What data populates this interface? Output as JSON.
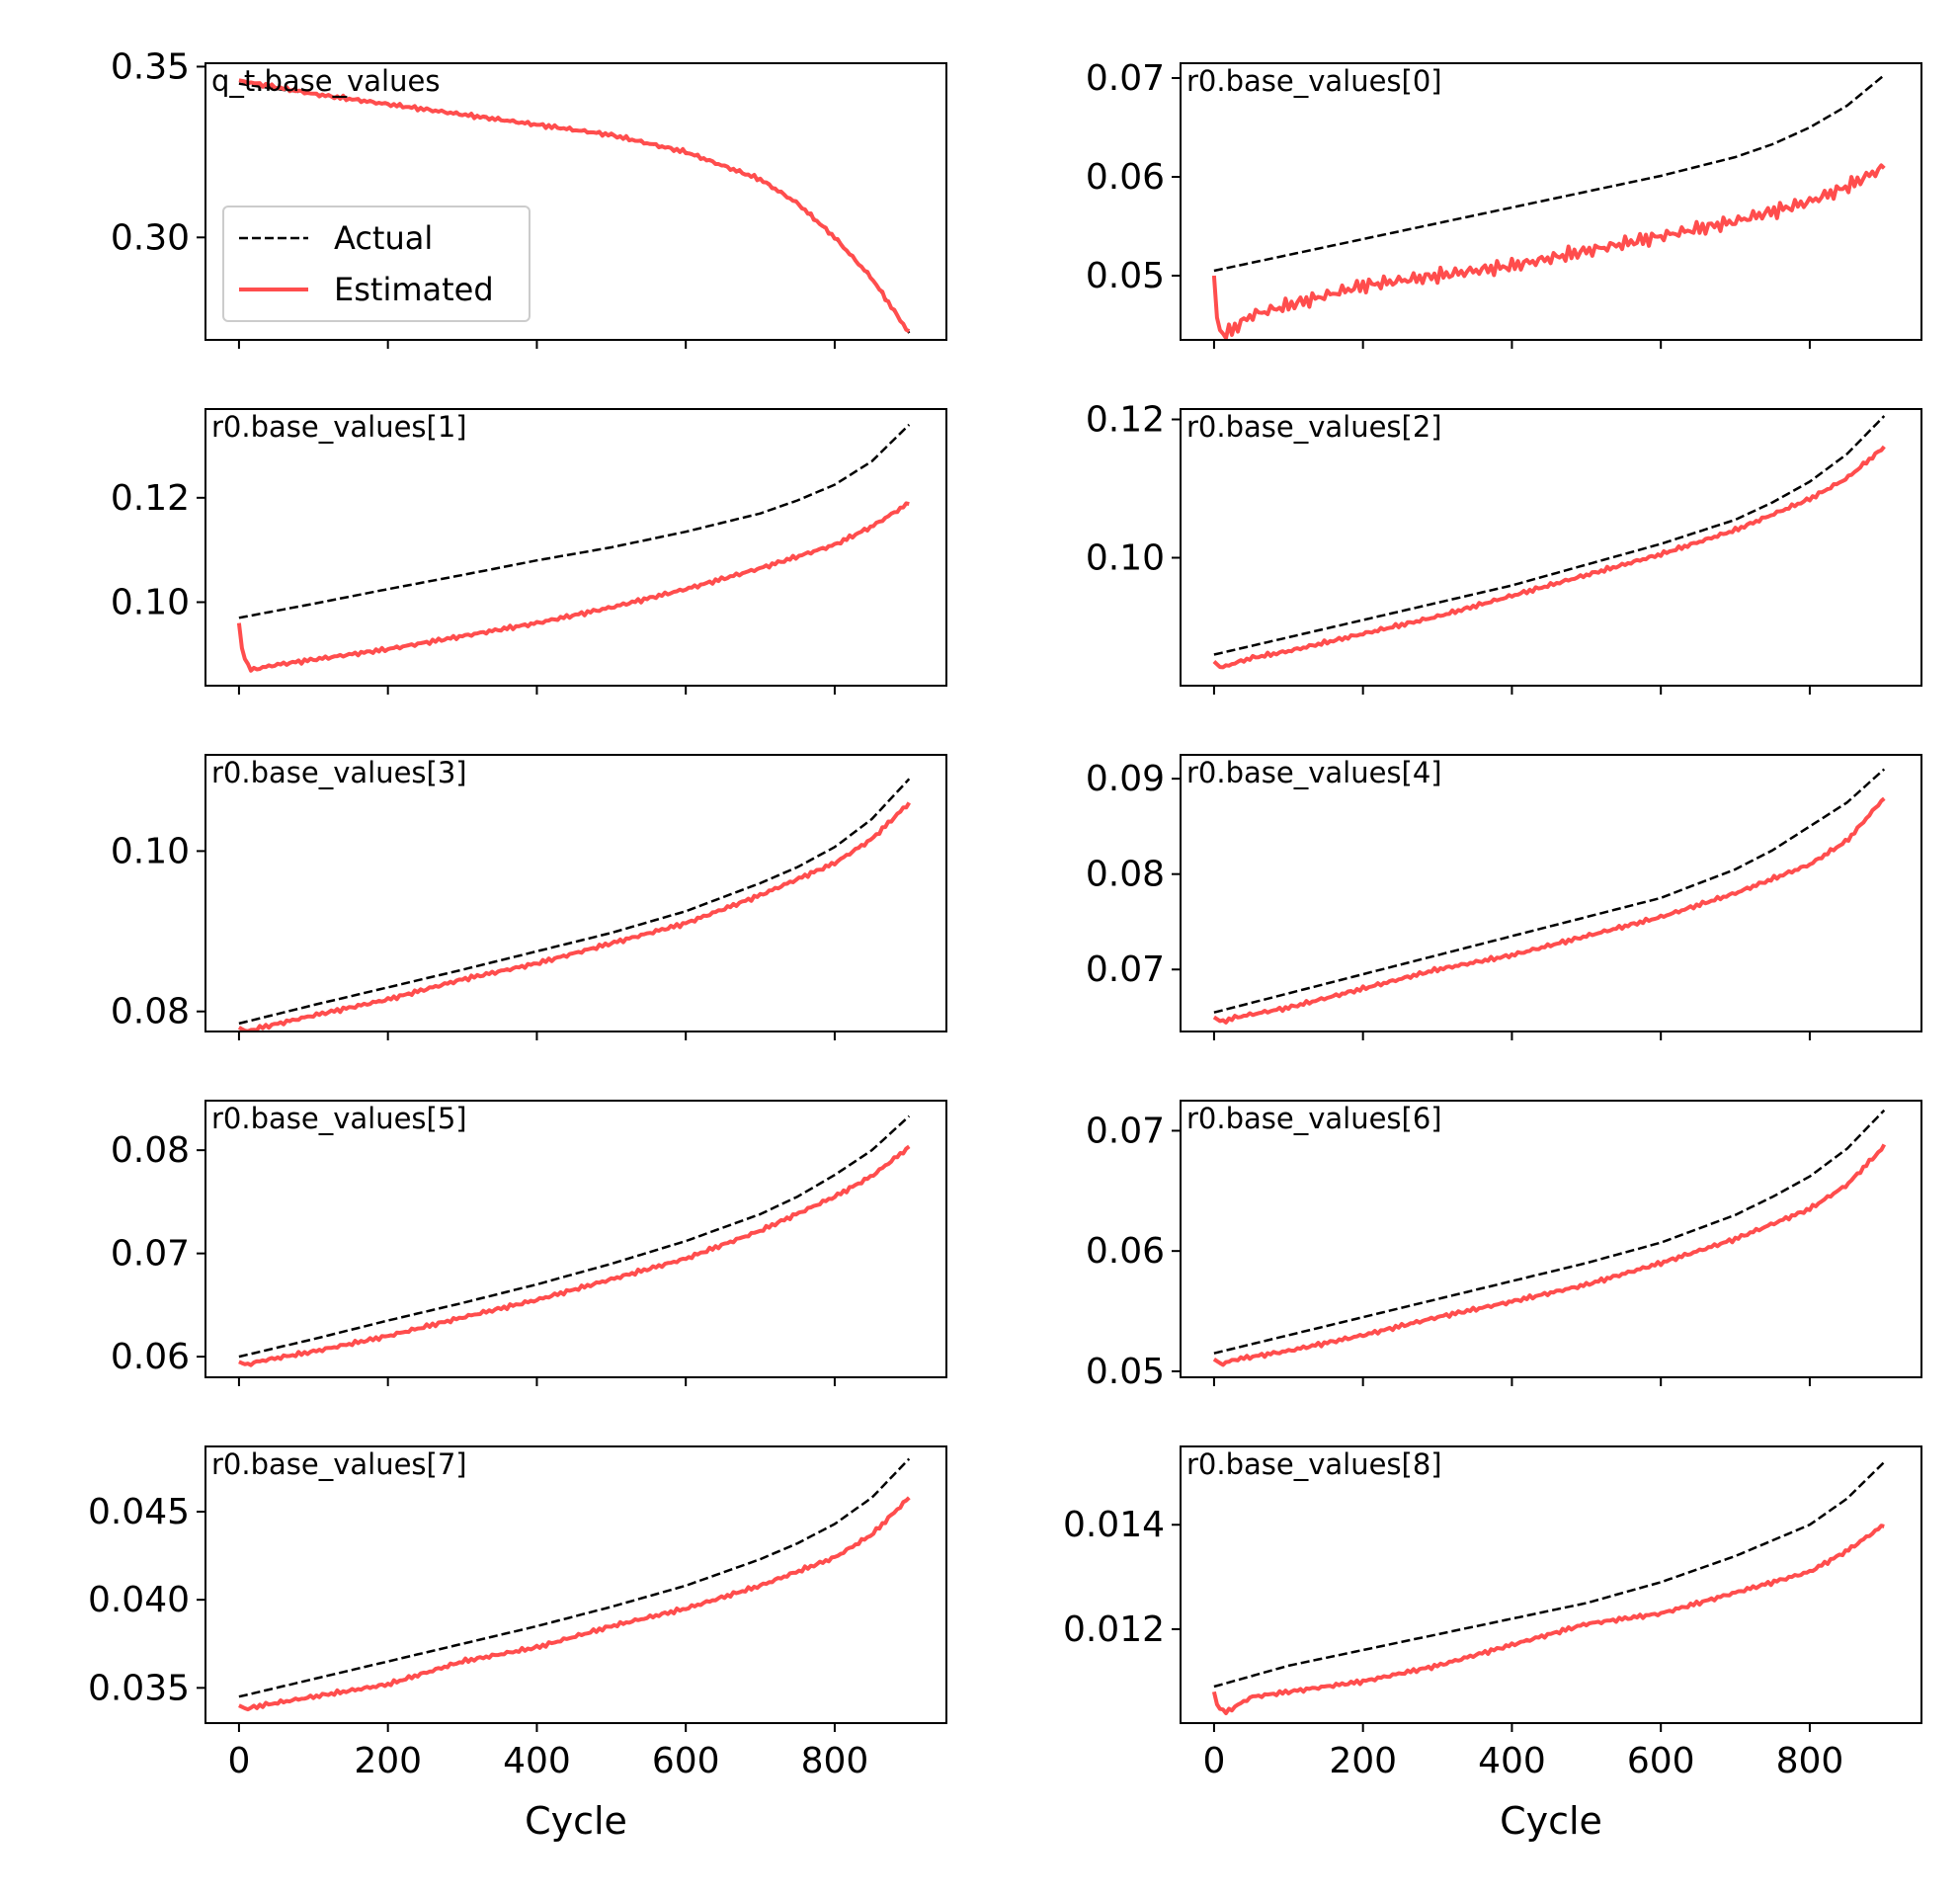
{
  "colors": {
    "actual": "#000000",
    "estimated": "#ff4d4d"
  },
  "legend": {
    "actual_label": "Actual",
    "estimated_label": "Estimated"
  },
  "chart_data": [
    {
      "type": "line",
      "title": "q_t.base_values",
      "xlabel": "",
      "ylabel": "",
      "xlim": [
        -45,
        950
      ],
      "ylim": [
        0.27,
        0.351
      ],
      "yticks": [
        {
          "v": 0.3,
          "label": "0.30"
        },
        {
          "v": 0.35,
          "label": "0.35"
        }
      ],
      "xticks": [
        0,
        200,
        400,
        600,
        800
      ],
      "legend": "center-left",
      "series": [
        {
          "name": "Actual",
          "x": [
            0,
            100,
            200,
            300,
            400,
            500,
            600,
            700,
            750,
            800,
            850,
            900
          ],
          "y": [
            0.345,
            0.342,
            0.339,
            0.336,
            0.333,
            0.33,
            0.325,
            0.317,
            0.31,
            0.3,
            0.288,
            0.272
          ]
        },
        {
          "name": "Estimated",
          "x": [
            0,
            100,
            200,
            300,
            400,
            500,
            600,
            700,
            750,
            800,
            850,
            900
          ],
          "y": [
            0.346,
            0.342,
            0.339,
            0.336,
            0.333,
            0.33,
            0.325,
            0.317,
            0.31,
            0.3,
            0.288,
            0.272
          ]
        }
      ]
    },
    {
      "type": "line",
      "title": "r0.base_values[0]",
      "xlabel": "",
      "ylabel": "",
      "xlim": [
        -45,
        950
      ],
      "ylim": [
        0.0435,
        0.0715
      ],
      "yticks": [
        {
          "v": 0.05,
          "label": "0.05"
        },
        {
          "v": 0.06,
          "label": "0.06"
        },
        {
          "v": 0.07,
          "label": "0.07"
        }
      ],
      "xticks": [
        0,
        200,
        400,
        600,
        800
      ],
      "series": [
        {
          "name": "Actual",
          "x": [
            0,
            100,
            200,
            300,
            400,
            500,
            600,
            700,
            750,
            800,
            850,
            900
          ],
          "y": [
            0.0505,
            0.0521,
            0.0537,
            0.0553,
            0.0569,
            0.0585,
            0.0601,
            0.062,
            0.0633,
            0.065,
            0.0672,
            0.0703
          ]
        },
        {
          "name": "Estimated",
          "x": [
            0,
            5,
            15,
            50,
            100,
            200,
            300,
            400,
            500,
            600,
            700,
            800,
            850,
            900
          ],
          "y": [
            0.05,
            0.0447,
            0.044,
            0.046,
            0.047,
            0.049,
            0.05,
            0.051,
            0.0525,
            0.054,
            0.0555,
            0.0575,
            0.059,
            0.061
          ]
        }
      ]
    },
    {
      "type": "line",
      "title": "r0.base_values[1]",
      "xlabel": "",
      "ylabel": "",
      "xlim": [
        -45,
        950
      ],
      "ylim": [
        0.084,
        0.137
      ],
      "yticks": [
        {
          "v": 0.1,
          "label": "0.10"
        },
        {
          "v": 0.12,
          "label": "0.12"
        }
      ],
      "xticks": [
        0,
        200,
        400,
        600,
        800
      ],
      "series": [
        {
          "name": "Actual",
          "x": [
            0,
            100,
            200,
            300,
            400,
            500,
            600,
            700,
            750,
            800,
            850,
            900
          ],
          "y": [
            0.097,
            0.0997,
            0.1025,
            0.1052,
            0.108,
            0.1105,
            0.1135,
            0.117,
            0.1195,
            0.1225,
            0.127,
            0.134
          ]
        },
        {
          "name": "Estimated",
          "x": [
            0,
            5,
            15,
            50,
            100,
            200,
            300,
            400,
            500,
            600,
            700,
            800,
            850,
            900
          ],
          "y": [
            0.096,
            0.09,
            0.087,
            0.088,
            0.089,
            0.091,
            0.0935,
            0.096,
            0.099,
            0.1025,
            0.1065,
            0.111,
            0.1145,
            0.119
          ]
        }
      ]
    },
    {
      "type": "line",
      "title": "r0.base_values[2]",
      "xlabel": "",
      "ylabel": "",
      "xlim": [
        -45,
        950
      ],
      "ylim": [
        0.0815,
        0.1215
      ],
      "yticks": [
        {
          "v": 0.1,
          "label": "0.10"
        },
        {
          "v": 0.12,
          "label": "0.12"
        }
      ],
      "xticks": [
        0,
        200,
        400,
        600,
        800
      ],
      "series": [
        {
          "name": "Actual",
          "x": [
            0,
            100,
            200,
            300,
            400,
            500,
            600,
            700,
            750,
            800,
            850,
            900
          ],
          "y": [
            0.086,
            0.0885,
            0.091,
            0.0935,
            0.096,
            0.099,
            0.102,
            0.1055,
            0.108,
            0.111,
            0.115,
            0.1205
          ]
        },
        {
          "name": "Estimated",
          "x": [
            0,
            10,
            20,
            50,
            100,
            200,
            300,
            400,
            500,
            600,
            700,
            800,
            850,
            900
          ],
          "y": [
            0.085,
            0.084,
            0.0845,
            0.0855,
            0.0865,
            0.089,
            0.0915,
            0.0945,
            0.0975,
            0.1005,
            0.104,
            0.1085,
            0.1115,
            0.116
          ]
        }
      ]
    },
    {
      "type": "line",
      "title": "r0.base_values[3]",
      "xlabel": "",
      "ylabel": "",
      "xlim": [
        -45,
        950
      ],
      "ylim": [
        0.0775,
        0.112
      ],
      "yticks": [
        {
          "v": 0.08,
          "label": "0.08"
        },
        {
          "v": 0.1,
          "label": "0.10"
        }
      ],
      "xticks": [
        0,
        200,
        400,
        600,
        800
      ],
      "series": [
        {
          "name": "Actual",
          "x": [
            0,
            100,
            200,
            300,
            400,
            500,
            600,
            700,
            750,
            800,
            850,
            900
          ],
          "y": [
            0.0785,
            0.0808,
            0.083,
            0.0852,
            0.0875,
            0.0898,
            0.0925,
            0.096,
            0.098,
            0.1005,
            0.104,
            0.109
          ]
        },
        {
          "name": "Estimated",
          "x": [
            0,
            10,
            30,
            100,
            200,
            300,
            400,
            500,
            600,
            700,
            800,
            850,
            900
          ],
          "y": [
            0.078,
            0.0775,
            0.078,
            0.0795,
            0.0815,
            0.084,
            0.086,
            0.0885,
            0.091,
            0.0945,
            0.0985,
            0.1015,
            0.106
          ]
        }
      ]
    },
    {
      "type": "line",
      "title": "r0.base_values[4]",
      "xlabel": "",
      "ylabel": "",
      "xlim": [
        -45,
        950
      ],
      "ylim": [
        0.0635,
        0.0925
      ],
      "yticks": [
        {
          "v": 0.07,
          "label": "0.07"
        },
        {
          "v": 0.08,
          "label": "0.08"
        },
        {
          "v": 0.09,
          "label": "0.09"
        }
      ],
      "xticks": [
        0,
        200,
        400,
        600,
        800
      ],
      "series": [
        {
          "name": "Actual",
          "x": [
            0,
            100,
            200,
            300,
            400,
            500,
            600,
            700,
            750,
            800,
            850,
            900
          ],
          "y": [
            0.0655,
            0.0675,
            0.0695,
            0.0715,
            0.0735,
            0.0755,
            0.0775,
            0.0805,
            0.0825,
            0.085,
            0.0875,
            0.091
          ]
        },
        {
          "name": "Estimated",
          "x": [
            0,
            10,
            30,
            100,
            200,
            300,
            400,
            500,
            600,
            700,
            800,
            850,
            900
          ],
          "y": [
            0.065,
            0.0645,
            0.065,
            0.066,
            0.068,
            0.07,
            0.0715,
            0.0735,
            0.0755,
            0.078,
            0.081,
            0.0835,
            0.088
          ]
        }
      ]
    },
    {
      "type": "line",
      "title": "r0.base_values[5]",
      "xlabel": "",
      "ylabel": "",
      "xlim": [
        -45,
        950
      ],
      "ylim": [
        0.058,
        0.0848
      ],
      "yticks": [
        {
          "v": 0.06,
          "label": "0.06"
        },
        {
          "v": 0.07,
          "label": "0.07"
        },
        {
          "v": 0.08,
          "label": "0.08"
        }
      ],
      "xticks": [
        0,
        200,
        400,
        600,
        800
      ],
      "series": [
        {
          "name": "Actual",
          "x": [
            0,
            100,
            200,
            300,
            400,
            500,
            600,
            700,
            750,
            800,
            850,
            900
          ],
          "y": [
            0.06,
            0.0617,
            0.0635,
            0.0652,
            0.067,
            0.069,
            0.0712,
            0.0738,
            0.0755,
            0.0776,
            0.08,
            0.0833
          ]
        },
        {
          "name": "Estimated",
          "x": [
            0,
            10,
            30,
            100,
            200,
            300,
            400,
            500,
            600,
            700,
            800,
            850,
            900
          ],
          "y": [
            0.0595,
            0.0592,
            0.0596,
            0.0605,
            0.062,
            0.0638,
            0.0655,
            0.0675,
            0.0695,
            0.0722,
            0.0755,
            0.0775,
            0.0803
          ]
        }
      ]
    },
    {
      "type": "line",
      "title": "r0.base_values[6]",
      "xlabel": "",
      "ylabel": "",
      "xlim": [
        -45,
        950
      ],
      "ylim": [
        0.0495,
        0.0725
      ],
      "yticks": [
        {
          "v": 0.05,
          "label": "0.05"
        },
        {
          "v": 0.06,
          "label": "0.06"
        },
        {
          "v": 0.07,
          "label": "0.07"
        }
      ],
      "xticks": [
        0,
        200,
        400,
        600,
        800
      ],
      "series": [
        {
          "name": "Actual",
          "x": [
            0,
            100,
            200,
            300,
            400,
            500,
            600,
            700,
            750,
            800,
            850,
            900
          ],
          "y": [
            0.0515,
            0.053,
            0.0545,
            0.056,
            0.0575,
            0.059,
            0.0607,
            0.063,
            0.0645,
            0.0662,
            0.0685,
            0.0717
          ]
        },
        {
          "name": "Estimated",
          "x": [
            0,
            10,
            30,
            100,
            200,
            300,
            400,
            500,
            600,
            700,
            800,
            850,
            900
          ],
          "y": [
            0.051,
            0.0506,
            0.051,
            0.0517,
            0.053,
            0.0545,
            0.0558,
            0.0572,
            0.059,
            0.061,
            0.0635,
            0.0655,
            0.0687
          ]
        }
      ]
    },
    {
      "type": "line",
      "title": "r0.base_values[7]",
      "xlabel": "Cycle",
      "ylabel": "",
      "xlim": [
        -45,
        950
      ],
      "ylim": [
        0.033,
        0.0487
      ],
      "yticks": [
        {
          "v": 0.035,
          "label": "0.035"
        },
        {
          "v": 0.04,
          "label": "0.040"
        },
        {
          "v": 0.045,
          "label": "0.045"
        }
      ],
      "xticks": [
        0,
        200,
        400,
        600,
        800
      ],
      "series": [
        {
          "name": "Actual",
          "x": [
            0,
            100,
            200,
            300,
            400,
            500,
            600,
            700,
            750,
            800,
            850,
            900
          ],
          "y": [
            0.0345,
            0.0355,
            0.0365,
            0.0375,
            0.0385,
            0.0396,
            0.0408,
            0.0423,
            0.0432,
            0.0443,
            0.0458,
            0.048
          ]
        },
        {
          "name": "Estimated",
          "x": [
            0,
            10,
            30,
            100,
            200,
            300,
            400,
            500,
            600,
            700,
            800,
            850,
            900
          ],
          "y": [
            0.034,
            0.0338,
            0.034,
            0.0345,
            0.0352,
            0.0365,
            0.0373,
            0.0385,
            0.0395,
            0.0408,
            0.0424,
            0.0437,
            0.0458
          ]
        }
      ]
    },
    {
      "type": "line",
      "title": "r0.base_values[8]",
      "xlabel": "Cycle",
      "ylabel": "",
      "xlim": [
        -45,
        950
      ],
      "ylim": [
        0.0102,
        0.0155
      ],
      "yticks": [
        {
          "v": 0.012,
          "label": "0.012"
        },
        {
          "v": 0.014,
          "label": "0.014"
        }
      ],
      "xticks": [
        0,
        200,
        400,
        600,
        800
      ],
      "series": [
        {
          "name": "Actual",
          "x": [
            0,
            100,
            200,
            300,
            400,
            500,
            600,
            700,
            750,
            800,
            850,
            900
          ],
          "y": [
            0.0109,
            0.0113,
            0.0116,
            0.0119,
            0.0122,
            0.0125,
            0.0129,
            0.0134,
            0.0137,
            0.014,
            0.0145,
            0.0152
          ]
        },
        {
          "name": "Estimated",
          "x": [
            0,
            5,
            15,
            50,
            100,
            200,
            300,
            400,
            500,
            600,
            700,
            800,
            850,
            900
          ],
          "y": [
            0.0108,
            0.0105,
            0.0104,
            0.0107,
            0.0108,
            0.011,
            0.0113,
            0.0117,
            0.0121,
            0.0123,
            0.0127,
            0.0131,
            0.0135,
            0.014
          ]
        }
      ]
    }
  ]
}
